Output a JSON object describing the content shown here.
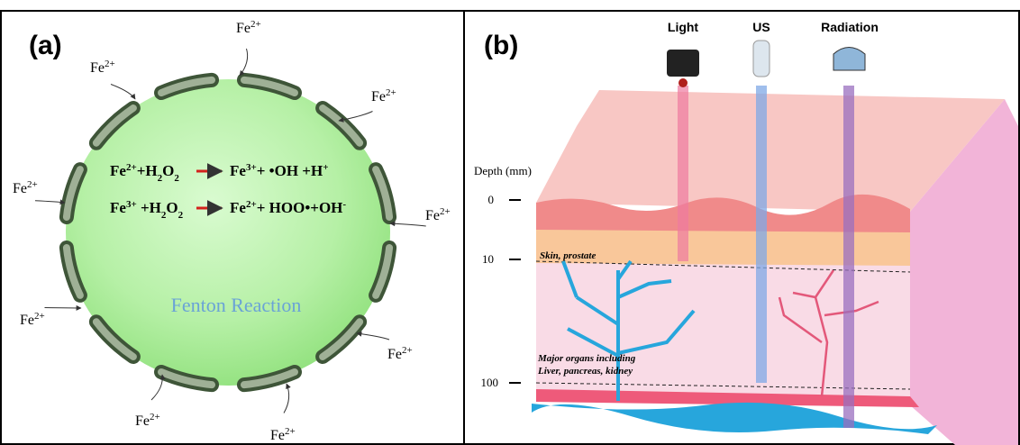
{
  "panel_a": {
    "label": "(a)",
    "fe_labels": [
      {
        "base": "Fe",
        "sup": "2+"
      },
      {
        "base": "Fe",
        "sup": "2+"
      },
      {
        "base": "Fe",
        "sup": "2+"
      },
      {
        "base": "Fe",
        "sup": "2+"
      },
      {
        "base": "Fe",
        "sup": "2+"
      },
      {
        "base": "Fe",
        "sup": "2+"
      },
      {
        "base": "Fe",
        "sup": "2+"
      },
      {
        "base": "Fe",
        "sup": "2+"
      },
      {
        "base": "Fe",
        "sup": "2+"
      }
    ],
    "equations": [
      {
        "left": [
          {
            "t": "Fe"
          },
          {
            "sup": "2+"
          },
          {
            "t": "+H"
          },
          {
            "sub": "2"
          },
          {
            "t": "O"
          },
          {
            "sub": "2"
          }
        ],
        "right": [
          {
            "t": "Fe"
          },
          {
            "sup": "3+"
          },
          {
            "t": "+  •OH  +H"
          },
          {
            "sup": "+"
          }
        ]
      },
      {
        "left": [
          {
            "t": "Fe"
          },
          {
            "sup": "3+"
          },
          {
            "t": " +H"
          },
          {
            "sub": "2"
          },
          {
            "t": "O"
          },
          {
            "sub": "2"
          }
        ],
        "right": [
          {
            "t": "Fe"
          },
          {
            "sup": "2+"
          },
          {
            "t": "+ HOO•+OH"
          },
          {
            "sup": "-"
          }
        ]
      }
    ],
    "caption": "Fenton Reaction"
  },
  "panel_b": {
    "label": "(b)",
    "sources": [
      "Light",
      "US",
      "Radiation"
    ],
    "depth_title": "Depth (mm)",
    "depth_ticks": [
      0,
      10,
      100
    ],
    "skin_label": "Skin, prostate",
    "organ_label": [
      "Major organs including",
      "Liver, pancreas, kidney"
    ]
  }
}
